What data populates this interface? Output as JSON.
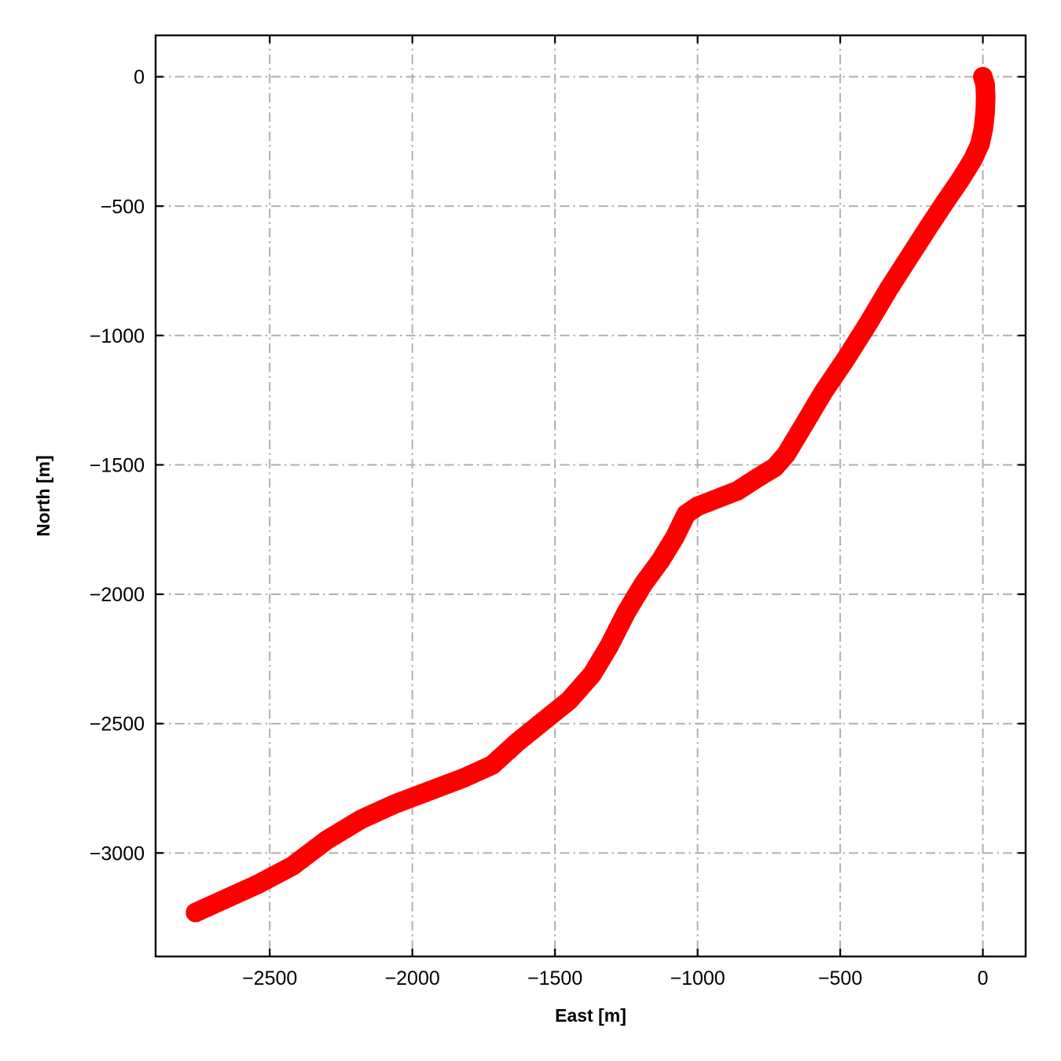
{
  "chart_data": {
    "type": "scatter",
    "title": "",
    "xlabel": "East [m]",
    "ylabel": "North [m]",
    "xlim": [
      -2900,
      150
    ],
    "ylim": [
      -3400,
      160
    ],
    "xticks": [
      -2500,
      -2000,
      -1500,
      -1000,
      -500,
      0
    ],
    "yticks": [
      0,
      -500,
      -1000,
      -1500,
      -2000,
      -2500,
      -3000
    ],
    "xtick_labels": [
      "−2500",
      "−2000",
      "−1500",
      "−1000",
      "−500",
      "0"
    ],
    "ytick_labels": [
      "0",
      "−500",
      "−1000",
      "−1500",
      "−2000",
      "−2500",
      "−3000"
    ],
    "grid": true,
    "marker_color": "#ff0000",
    "series": [
      {
        "points": [
          [
            0,
            0
          ],
          [
            8,
            -30
          ],
          [
            10,
            -80
          ],
          [
            8,
            -140
          ],
          [
            2,
            -200
          ],
          [
            -10,
            -260
          ],
          [
            -35,
            -320
          ],
          [
            -80,
            -400
          ],
          [
            -130,
            -480
          ],
          [
            -190,
            -580
          ],
          [
            -260,
            -700
          ],
          [
            -330,
            -820
          ],
          [
            -400,
            -950
          ],
          [
            -480,
            -1090
          ],
          [
            -560,
            -1220
          ],
          [
            -630,
            -1350
          ],
          [
            -690,
            -1460
          ],
          [
            -730,
            -1510
          ],
          [
            -790,
            -1550
          ],
          [
            -860,
            -1600
          ],
          [
            -930,
            -1630
          ],
          [
            -1000,
            -1660
          ],
          [
            -1040,
            -1690
          ],
          [
            -1080,
            -1780
          ],
          [
            -1130,
            -1870
          ],
          [
            -1190,
            -1960
          ],
          [
            -1250,
            -2070
          ],
          [
            -1310,
            -2200
          ],
          [
            -1370,
            -2310
          ],
          [
            -1450,
            -2410
          ],
          [
            -1540,
            -2490
          ],
          [
            -1630,
            -2570
          ],
          [
            -1720,
            -2660
          ],
          [
            -1820,
            -2710
          ],
          [
            -1940,
            -2760
          ],
          [
            -2060,
            -2810
          ],
          [
            -2180,
            -2870
          ],
          [
            -2300,
            -2950
          ],
          [
            -2420,
            -3050
          ],
          [
            -2540,
            -3120
          ],
          [
            -2660,
            -3180
          ],
          [
            -2760,
            -3230
          ]
        ]
      }
    ]
  }
}
